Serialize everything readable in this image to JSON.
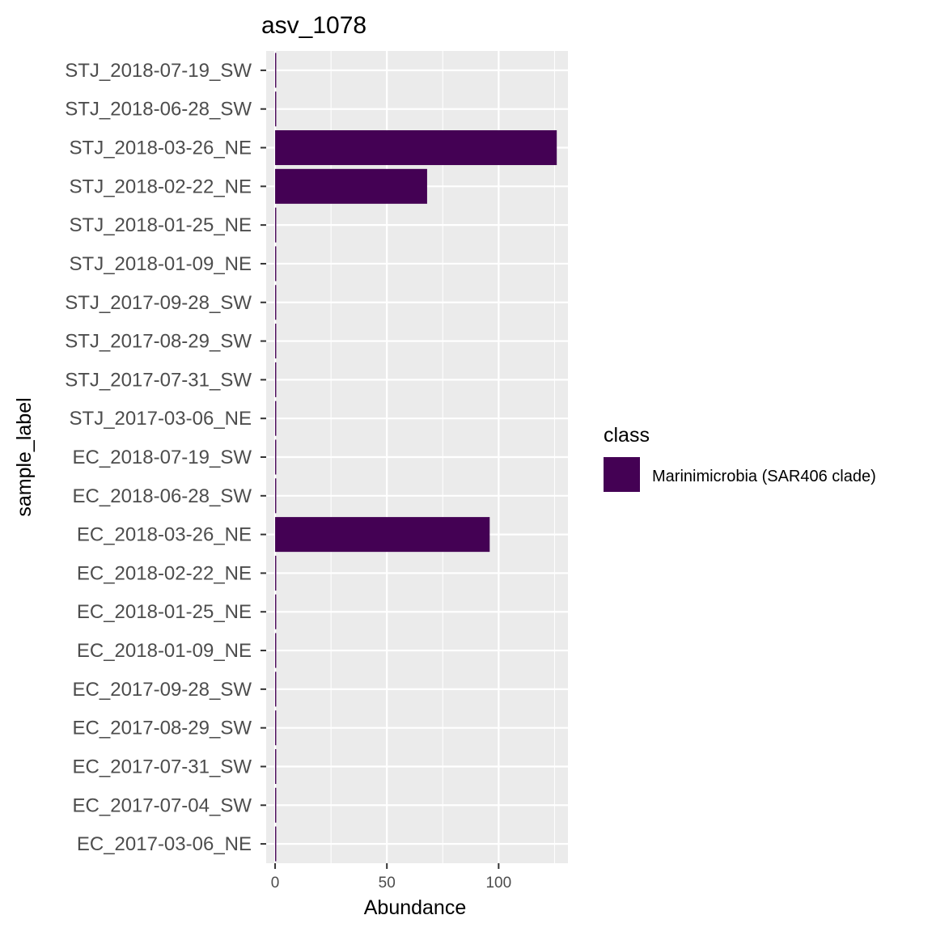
{
  "chart_data": {
    "type": "bar",
    "orientation": "horizontal",
    "title": "asv_1078",
    "xlabel": "Abundance",
    "ylabel": "sample_label",
    "xlim": [
      -4,
      131
    ],
    "xticks": [
      0,
      50,
      100
    ],
    "grid": true,
    "legend": {
      "title": "class",
      "placement": "right",
      "entries": [
        {
          "name": "Marinimicrobia (SAR406 clade)",
          "color": "#440154"
        }
      ]
    },
    "categories": [
      "EC_2017-03-06_NE",
      "EC_2017-07-04_SW",
      "EC_2017-07-31_SW",
      "EC_2017-08-29_SW",
      "EC_2017-09-28_SW",
      "EC_2018-01-09_NE",
      "EC_2018-01-25_NE",
      "EC_2018-02-22_NE",
      "EC_2018-03-26_NE",
      "EC_2018-06-28_SW",
      "EC_2018-07-19_SW",
      "STJ_2017-03-06_NE",
      "STJ_2017-07-31_SW",
      "STJ_2017-08-29_SW",
      "STJ_2017-09-28_SW",
      "STJ_2018-01-09_NE",
      "STJ_2018-01-25_NE",
      "STJ_2018-02-22_NE",
      "STJ_2018-03-26_NE",
      "STJ_2018-06-28_SW",
      "STJ_2018-07-19_SW"
    ],
    "series": [
      {
        "name": "Marinimicrobia (SAR406 clade)",
        "color": "#440154",
        "values": [
          0.5,
          0.5,
          0.5,
          0.5,
          0.5,
          0.5,
          0.5,
          0.5,
          96,
          0.5,
          0.5,
          0.5,
          0.5,
          0.5,
          0.5,
          0.5,
          0.5,
          68,
          126,
          0.5,
          0.5
        ]
      }
    ],
    "colors": {
      "panel_background": "#ebebeb",
      "gridline": "#ffffff"
    }
  }
}
